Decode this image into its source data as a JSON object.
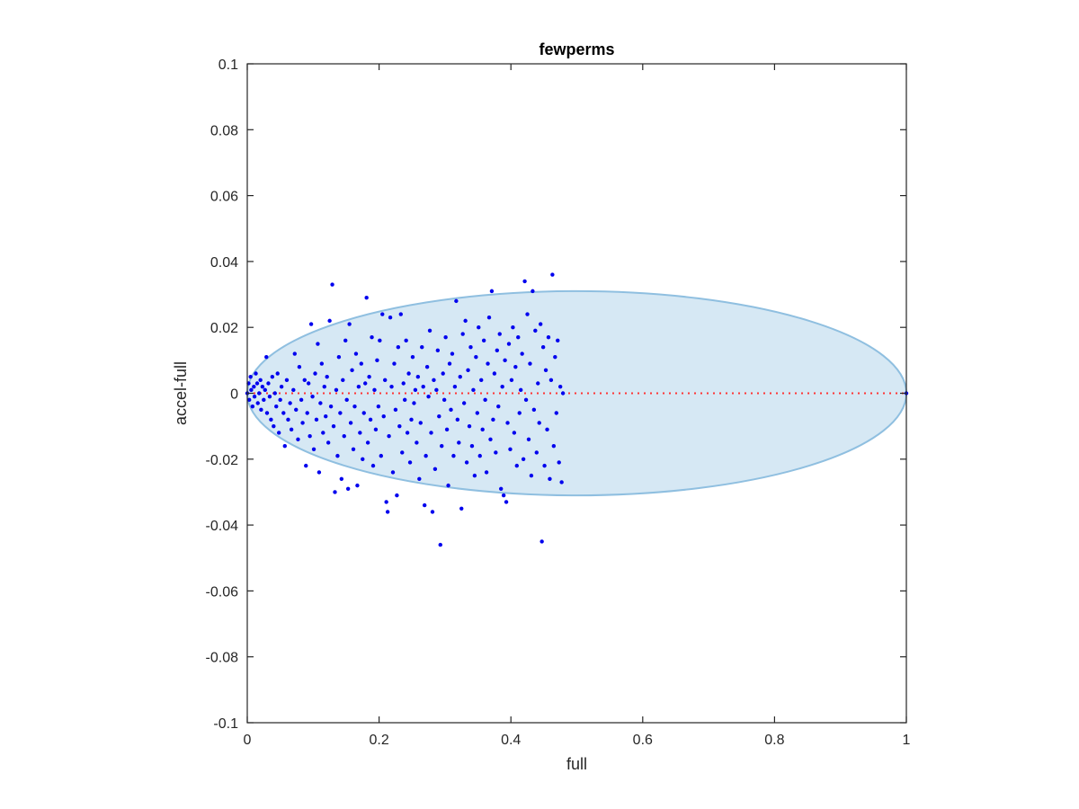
{
  "chart_data": {
    "type": "scatter",
    "title": "fewperms",
    "xlabel": "full",
    "ylabel": "accel-full",
    "xlim": [
      0,
      1
    ],
    "ylim": [
      -0.1,
      0.1
    ],
    "xticks": [
      0,
      0.2,
      0.4,
      0.6,
      0.8,
      1
    ],
    "xtick_labels": [
      "0",
      "0.2",
      "0.4",
      "0.6",
      "0.8",
      "1"
    ],
    "yticks": [
      -0.1,
      -0.08,
      -0.06,
      -0.04,
      -0.02,
      0,
      0.02,
      0.04,
      0.06,
      0.08,
      0.1
    ],
    "ytick_labels": [
      "-0.1",
      "-0.08",
      "-0.06",
      "-0.04",
      "-0.02",
      "0",
      "0.02",
      "0.04",
      "0.06",
      "0.08",
      "0.1"
    ],
    "grid": false,
    "colors": {
      "points": "#0000ee",
      "reference_line": "#ff3333",
      "ellipse_fill": "#d6e8f4",
      "ellipse_stroke": "#8fbfe0",
      "axes": "#262626"
    },
    "reference_line": {
      "y": 0,
      "x_range": [
        0,
        1
      ],
      "style": "dotted"
    },
    "ellipse": {
      "center": [
        0.5,
        0
      ],
      "x_radius": 0.5,
      "y_radius": 0.031
    },
    "series": [
      {
        "points": [
          [
            0.0,
            0.0
          ],
          [
            0.002,
            0.003
          ],
          [
            0.003,
            -0.002
          ],
          [
            0.005,
            0.005
          ],
          [
            0.006,
            0.001
          ],
          [
            0.008,
            -0.004
          ],
          [
            0.01,
            0.002
          ],
          [
            0.011,
            -0.001
          ],
          [
            0.013,
            0.006
          ],
          [
            0.015,
            0.003
          ],
          [
            0.016,
            -0.003
          ],
          [
            0.018,
            0.0
          ],
          [
            0.02,
            0.004
          ],
          [
            0.021,
            -0.005
          ],
          [
            0.023,
            0.002
          ],
          [
            0.025,
            -0.002
          ],
          [
            0.027,
            0.001
          ],
          [
            0.029,
            0.011
          ],
          [
            0.03,
            -0.006
          ],
          [
            0.032,
            0.003
          ],
          [
            0.034,
            -0.001
          ],
          [
            0.036,
            -0.008
          ],
          [
            0.038,
            0.005
          ],
          [
            0.04,
            -0.01
          ],
          [
            0.042,
            0.0
          ],
          [
            0.044,
            -0.004
          ],
          [
            0.046,
            0.006
          ],
          [
            0.048,
            -0.012
          ],
          [
            0.05,
            -0.002
          ],
          [
            0.052,
            0.002
          ],
          [
            0.055,
            -0.006
          ],
          [
            0.057,
            -0.016
          ],
          [
            0.06,
            0.004
          ],
          [
            0.062,
            -0.008
          ],
          [
            0.065,
            -0.003
          ],
          [
            0.067,
            -0.011
          ],
          [
            0.07,
            0.001
          ],
          [
            0.072,
            0.012
          ],
          [
            0.074,
            -0.005
          ],
          [
            0.077,
            -0.014
          ],
          [
            0.079,
            0.008
          ],
          [
            0.082,
            -0.002
          ],
          [
            0.084,
            -0.009
          ],
          [
            0.087,
            0.004
          ],
          [
            0.089,
            -0.022
          ],
          [
            0.091,
            -0.006
          ],
          [
            0.093,
            0.003
          ],
          [
            0.095,
            -0.013
          ],
          [
            0.097,
            0.021
          ],
          [
            0.099,
            -0.001
          ],
          [
            0.101,
            -0.017
          ],
          [
            0.103,
            0.006
          ],
          [
            0.105,
            -0.008
          ],
          [
            0.107,
            0.015
          ],
          [
            0.109,
            -0.024
          ],
          [
            0.111,
            -0.003
          ],
          [
            0.113,
            0.009
          ],
          [
            0.115,
            -0.012
          ],
          [
            0.117,
            0.002
          ],
          [
            0.119,
            -0.007
          ],
          [
            0.121,
            0.005
          ],
          [
            0.123,
            -0.015
          ],
          [
            0.125,
            0.022
          ],
          [
            0.127,
            -0.004
          ],
          [
            0.129,
            0.033
          ],
          [
            0.131,
            -0.01
          ],
          [
            0.133,
            -0.03
          ],
          [
            0.135,
            0.001
          ],
          [
            0.137,
            -0.019
          ],
          [
            0.139,
            0.011
          ],
          [
            0.141,
            -0.006
          ],
          [
            0.143,
            -0.026
          ],
          [
            0.145,
            0.004
          ],
          [
            0.147,
            -0.013
          ],
          [
            0.149,
            0.016
          ],
          [
            0.151,
            -0.002
          ],
          [
            0.153,
            -0.029
          ],
          [
            0.155,
            0.021
          ],
          [
            0.157,
            -0.009
          ],
          [
            0.159,
            0.007
          ],
          [
            0.161,
            -0.017
          ],
          [
            0.163,
            -0.004
          ],
          [
            0.165,
            0.012
          ],
          [
            0.167,
            -0.028
          ],
          [
            0.169,
            0.002
          ],
          [
            0.171,
            -0.012
          ],
          [
            0.173,
            0.009
          ],
          [
            0.175,
            -0.02
          ],
          [
            0.177,
            -0.006
          ],
          [
            0.179,
            0.003
          ],
          [
            0.181,
            0.029
          ],
          [
            0.183,
            -0.015
          ],
          [
            0.185,
            0.005
          ],
          [
            0.187,
            -0.008
          ],
          [
            0.189,
            0.017
          ],
          [
            0.191,
            -0.022
          ],
          [
            0.193,
            0.001
          ],
          [
            0.195,
            -0.011
          ],
          [
            0.197,
            0.01
          ],
          [
            0.199,
            -0.004
          ],
          [
            0.201,
            0.016
          ],
          [
            0.203,
            -0.019
          ],
          [
            0.205,
            0.024
          ],
          [
            0.207,
            -0.007
          ],
          [
            0.209,
            0.004
          ],
          [
            0.211,
            -0.033
          ],
          [
            0.213,
            -0.036
          ],
          [
            0.215,
            -0.013
          ],
          [
            0.217,
            0.023
          ],
          [
            0.219,
            0.002
          ],
          [
            0.221,
            -0.024
          ],
          [
            0.223,
            0.009
          ],
          [
            0.225,
            -0.005
          ],
          [
            0.227,
            -0.031
          ],
          [
            0.229,
            0.014
          ],
          [
            0.231,
            -0.01
          ],
          [
            0.233,
            0.024
          ],
          [
            0.235,
            -0.018
          ],
          [
            0.237,
            0.003
          ],
          [
            0.239,
            -0.002
          ],
          [
            0.241,
            0.016
          ],
          [
            0.243,
            -0.012
          ],
          [
            0.245,
            0.006
          ],
          [
            0.247,
            -0.021
          ],
          [
            0.249,
            -0.008
          ],
          [
            0.251,
            0.011
          ],
          [
            0.253,
            -0.003
          ],
          [
            0.255,
            0.001
          ],
          [
            0.257,
            -0.015
          ],
          [
            0.259,
            0.005
          ],
          [
            0.261,
            -0.026
          ],
          [
            0.263,
            -0.009
          ],
          [
            0.265,
            0.014
          ],
          [
            0.267,
            0.002
          ],
          [
            0.269,
            -0.034
          ],
          [
            0.271,
            -0.019
          ],
          [
            0.273,
            0.008
          ],
          [
            0.275,
            -0.001
          ],
          [
            0.277,
            0.019
          ],
          [
            0.279,
            -0.012
          ],
          [
            0.281,
            -0.036
          ],
          [
            0.283,
            0.004
          ],
          [
            0.285,
            -0.023
          ],
          [
            0.287,
            0.001
          ],
          [
            0.289,
            0.013
          ],
          [
            0.291,
            -0.007
          ],
          [
            0.293,
            -0.046
          ],
          [
            0.295,
            -0.016
          ],
          [
            0.297,
            0.006
          ],
          [
            0.299,
            -0.002
          ],
          [
            0.301,
            0.017
          ],
          [
            0.303,
            -0.011
          ],
          [
            0.305,
            -0.028
          ],
          [
            0.307,
            0.009
          ],
          [
            0.309,
            -0.005
          ],
          [
            0.311,
            0.012
          ],
          [
            0.313,
            -0.019
          ],
          [
            0.315,
            0.002
          ],
          [
            0.317,
            0.028
          ],
          [
            0.319,
            -0.008
          ],
          [
            0.321,
            -0.015
          ],
          [
            0.323,
            0.005
          ],
          [
            0.325,
            -0.035
          ],
          [
            0.327,
            0.018
          ],
          [
            0.329,
            -0.003
          ],
          [
            0.331,
            0.022
          ],
          [
            0.333,
            -0.021
          ],
          [
            0.335,
            0.007
          ],
          [
            0.337,
            -0.01
          ],
          [
            0.339,
            0.014
          ],
          [
            0.341,
            -0.016
          ],
          [
            0.343,
            0.001
          ],
          [
            0.345,
            -0.025
          ],
          [
            0.347,
            0.011
          ],
          [
            0.349,
            -0.006
          ],
          [
            0.351,
            0.02
          ],
          [
            0.353,
            -0.019
          ],
          [
            0.355,
            0.004
          ],
          [
            0.357,
            -0.011
          ],
          [
            0.359,
            0.016
          ],
          [
            0.361,
            -0.002
          ],
          [
            0.363,
            -0.024
          ],
          [
            0.365,
            0.009
          ],
          [
            0.367,
            0.023
          ],
          [
            0.369,
            -0.014
          ],
          [
            0.371,
            0.031
          ],
          [
            0.373,
            -0.008
          ],
          [
            0.375,
            0.006
          ],
          [
            0.377,
            -0.018
          ],
          [
            0.379,
            0.013
          ],
          [
            0.381,
            -0.004
          ],
          [
            0.383,
            0.018
          ],
          [
            0.385,
            -0.029
          ],
          [
            0.387,
            0.002
          ],
          [
            0.389,
            -0.031
          ],
          [
            0.391,
            0.01
          ],
          [
            0.393,
            -0.033
          ],
          [
            0.395,
            -0.009
          ],
          [
            0.397,
            0.015
          ],
          [
            0.399,
            -0.017
          ],
          [
            0.401,
            0.004
          ],
          [
            0.403,
            0.02
          ],
          [
            0.405,
            -0.012
          ],
          [
            0.407,
            0.008
          ],
          [
            0.409,
            -0.022
          ],
          [
            0.411,
            0.017
          ],
          [
            0.413,
            -0.006
          ],
          [
            0.415,
            0.001
          ],
          [
            0.417,
            0.012
          ],
          [
            0.419,
            -0.02
          ],
          [
            0.421,
            0.034
          ],
          [
            0.423,
            -0.002
          ],
          [
            0.425,
            0.024
          ],
          [
            0.427,
            -0.014
          ],
          [
            0.429,
            0.009
          ],
          [
            0.431,
            -0.025
          ],
          [
            0.433,
            0.031
          ],
          [
            0.435,
            -0.005
          ],
          [
            0.437,
            0.019
          ],
          [
            0.439,
            -0.018
          ],
          [
            0.441,
            0.003
          ],
          [
            0.443,
            -0.009
          ],
          [
            0.445,
            0.021
          ],
          [
            0.447,
            -0.045
          ],
          [
            0.449,
            0.014
          ],
          [
            0.451,
            -0.022
          ],
          [
            0.453,
            0.007
          ],
          [
            0.455,
            -0.011
          ],
          [
            0.457,
            0.017
          ],
          [
            0.459,
            -0.026
          ],
          [
            0.461,
            0.004
          ],
          [
            0.463,
            0.036
          ],
          [
            0.465,
            -0.016
          ],
          [
            0.467,
            0.011
          ],
          [
            0.469,
            -0.006
          ],
          [
            0.471,
            0.016
          ],
          [
            0.473,
            -0.021
          ],
          [
            0.475,
            0.002
          ],
          [
            0.477,
            -0.027
          ],
          [
            0.479,
            0.0
          ],
          [
            1.0,
            0.0
          ]
        ]
      }
    ]
  }
}
